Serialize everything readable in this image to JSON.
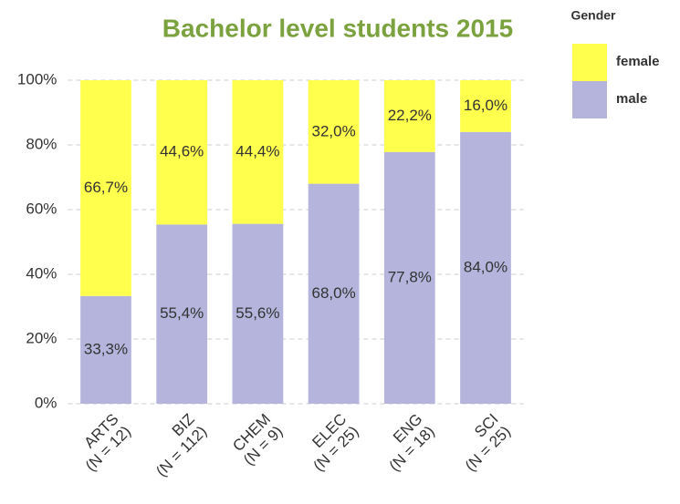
{
  "chart_data": {
    "type": "stacked_bar",
    "title": "Bachelor level students 2015",
    "categories": [
      [
        "ARTS",
        "(N = 12)"
      ],
      [
        "BIZ",
        "(N = 112)"
      ],
      [
        "CHEM",
        "(N = 9)"
      ],
      [
        "ELEC",
        "(N = 25)"
      ],
      [
        "ENG",
        "(N = 18)"
      ],
      [
        "SCI",
        "(N = 25)"
      ]
    ],
    "series": [
      {
        "name": "male",
        "color": "#b4b4dc",
        "values": [
          33.3,
          55.4,
          55.6,
          68.0,
          77.8,
          84.0
        ],
        "value_labels": [
          "33,3%",
          "55,4%",
          "55,6%",
          "68,0%",
          "77,8%",
          "84,0%"
        ]
      },
      {
        "name": "female",
        "color": "#ffff4d",
        "values": [
          66.7,
          44.6,
          44.4,
          32.0,
          22.2,
          16.0
        ],
        "value_labels": [
          "66,7%",
          "44,6%",
          "44,4%",
          "32,0%",
          "22,2%",
          "16,0%"
        ]
      }
    ],
    "legend_title": "Gender",
    "ylim": [
      0,
      100
    ],
    "yticks": [
      {
        "value": 0,
        "label": "0%"
      },
      {
        "value": 20,
        "label": "20%"
      },
      {
        "value": 40,
        "label": "40%"
      },
      {
        "value": 60,
        "label": "60%"
      },
      {
        "value": 80,
        "label": "80%"
      },
      {
        "value": 100,
        "label": "100%"
      }
    ],
    "grid": true
  }
}
